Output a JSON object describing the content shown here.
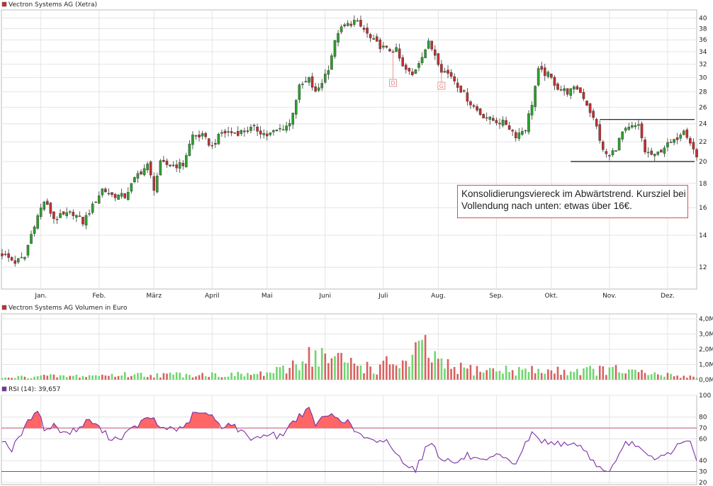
{
  "chart_data": [
    {
      "type": "candlestick",
      "title": "Vectron Systems AG (Xetra)",
      "months": [
        "Jan.",
        "Feb.",
        "März",
        "April",
        "Mai",
        "Juni",
        "Juli",
        "Aug.",
        "Sep.",
        "Okt.",
        "Nov.",
        "Dez."
      ],
      "yticks": [
        12,
        14,
        16,
        18,
        20,
        22,
        24,
        26,
        28,
        30,
        32,
        34,
        36,
        38,
        40
      ],
      "ylim": [
        10.8,
        41.6
      ],
      "log_scale": true,
      "grid": true,
      "up_color": "#2e9e2e",
      "down_color": "#c03030",
      "close_path": [
        [
          0,
          12.8
        ],
        [
          4,
          12.3
        ],
        [
          7,
          12.6
        ],
        [
          10,
          14.8
        ],
        [
          13,
          16.5
        ],
        [
          16,
          15.2
        ],
        [
          22,
          15.6
        ],
        [
          25,
          14.9
        ],
        [
          28,
          16.1
        ],
        [
          31,
          17.5
        ],
        [
          34,
          17.0
        ],
        [
          38,
          16.9
        ],
        [
          42,
          18.8
        ],
        [
          45,
          19.6
        ],
        [
          47,
          17.6
        ],
        [
          49,
          19.8
        ],
        [
          53,
          19.6
        ],
        [
          56,
          19.7
        ],
        [
          59,
          22.7
        ],
        [
          62,
          22.6
        ],
        [
          65,
          21.5
        ],
        [
          68,
          23.0
        ],
        [
          73,
          23.0
        ],
        [
          78,
          23.5
        ],
        [
          82,
          22.7
        ],
        [
          86,
          23.4
        ],
        [
          89,
          24.0
        ],
        [
          92,
          28.6
        ],
        [
          95,
          29.7
        ],
        [
          97,
          27.8
        ],
        [
          99,
          29.4
        ],
        [
          101,
          31.5
        ],
        [
          104,
          37.5
        ],
        [
          107,
          38.7
        ],
        [
          109,
          39.4
        ],
        [
          112,
          37.8
        ],
        [
          114,
          36.2
        ],
        [
          116,
          35.3
        ],
        [
          119,
          34.3
        ],
        [
          122,
          34.2
        ],
        [
          124,
          31.5
        ],
        [
          127,
          30.3
        ],
        [
          130,
          33.5
        ],
        [
          132,
          35.4
        ],
        [
          134,
          33.6
        ],
        [
          136,
          31.2
        ],
        [
          139,
          30.3
        ],
        [
          142,
          28.3
        ],
        [
          145,
          26.5
        ],
        [
          148,
          25.2
        ],
        [
          151,
          24.5
        ],
        [
          154,
          24.2
        ],
        [
          156,
          24.0
        ],
        [
          159,
          22.7
        ],
        [
          162,
          23.5
        ],
        [
          164,
          26.5
        ],
        [
          166,
          31.0
        ],
        [
          169,
          30.4
        ],
        [
          172,
          28.6
        ],
        [
          175,
          28.0
        ],
        [
          178,
          28.5
        ],
        [
          180,
          27.3
        ],
        [
          182,
          25.5
        ],
        [
          184,
          23.6
        ],
        [
          186,
          21.0
        ],
        [
          188,
          20.5
        ],
        [
          190,
          21.4
        ],
        [
          192,
          23.0
        ],
        [
          195,
          23.6
        ],
        [
          197,
          23.7
        ],
        [
          199,
          21.0
        ],
        [
          202,
          20.5
        ],
        [
          205,
          21.5
        ],
        [
          208,
          22.0
        ],
        [
          211,
          23.5
        ],
        [
          213,
          22.0
        ],
        [
          215,
          20.4
        ]
      ],
      "resistance_line": 24.5,
      "support_line": 20,
      "annotation": "Konsolidierungsviereck im Abwärtstrend. Kursziel bei Vollendung nach unten: etwas über 16€.",
      "markers": [
        {
          "label": "D",
          "at": "Juli"
        },
        {
          "label": "G",
          "at": "Juli"
        }
      ]
    },
    {
      "type": "bar",
      "title": "Vectron Systems AG Volumen in Euro",
      "yticks": [
        "0,0M",
        "1,0M",
        "2,0M",
        "3,0M",
        "4,0M"
      ],
      "ylim": [
        0,
        4
      ],
      "peaks": [
        [
          0,
          0.15
        ],
        [
          10,
          0.4
        ],
        [
          20,
          0.35
        ],
        [
          30,
          0.45
        ],
        [
          40,
          0.55
        ],
        [
          50,
          0.5
        ],
        [
          60,
          0.6
        ],
        [
          70,
          0.5
        ],
        [
          80,
          0.6
        ],
        [
          88,
          1.0
        ],
        [
          92,
          2.2
        ],
        [
          96,
          2.7
        ],
        [
          100,
          2.3
        ],
        [
          104,
          2.0
        ],
        [
          108,
          1.8
        ],
        [
          112,
          1.5
        ],
        [
          116,
          1.0
        ],
        [
          120,
          1.8
        ],
        [
          126,
          1.6
        ],
        [
          130,
          3.5
        ],
        [
          136,
          1.5
        ],
        [
          140,
          1.2
        ],
        [
          150,
          1.0
        ],
        [
          160,
          1.0
        ],
        [
          170,
          0.9
        ],
        [
          180,
          1.0
        ],
        [
          190,
          1.0
        ],
        [
          200,
          0.6
        ],
        [
          215,
          0.3
        ]
      ]
    },
    {
      "type": "area",
      "title": "RSI (14): 39,657",
      "yticks": [
        20,
        30,
        40,
        60,
        70,
        80,
        100
      ],
      "ylim": [
        18,
        100
      ],
      "reference_lines": [
        70,
        30
      ],
      "points": [
        [
          0,
          60
        ],
        [
          3,
          50
        ],
        [
          6,
          65
        ],
        [
          9,
          80
        ],
        [
          11,
          88
        ],
        [
          13,
          68
        ],
        [
          16,
          72
        ],
        [
          20,
          65
        ],
        [
          24,
          70
        ],
        [
          27,
          78
        ],
        [
          30,
          70
        ],
        [
          33,
          62
        ],
        [
          36,
          60
        ],
        [
          40,
          68
        ],
        [
          43,
          75
        ],
        [
          46,
          80
        ],
        [
          49,
          70
        ],
        [
          53,
          70
        ],
        [
          56,
          68
        ],
        [
          59,
          82
        ],
        [
          62,
          84
        ],
        [
          65,
          80
        ],
        [
          68,
          72
        ],
        [
          71,
          74
        ],
        [
          74,
          66
        ],
        [
          78,
          60
        ],
        [
          82,
          65
        ],
        [
          86,
          62
        ],
        [
          89,
          72
        ],
        [
          92,
          82
        ],
        [
          95,
          86
        ],
        [
          97,
          74
        ],
        [
          99,
          78
        ],
        [
          101,
          82
        ],
        [
          104,
          80
        ],
        [
          107,
          75
        ],
        [
          110,
          65
        ],
        [
          113,
          60
        ],
        [
          116,
          55
        ],
        [
          119,
          60
        ],
        [
          122,
          45
        ],
        [
          125,
          38
        ],
        [
          128,
          32
        ],
        [
          131,
          50
        ],
        [
          133,
          58
        ],
        [
          135,
          45
        ],
        [
          138,
          40
        ],
        [
          141,
          38
        ],
        [
          144,
          45
        ],
        [
          147,
          40
        ],
        [
          150,
          38
        ],
        [
          153,
          45
        ],
        [
          156,
          40
        ],
        [
          159,
          38
        ],
        [
          162,
          55
        ],
        [
          164,
          65
        ],
        [
          166,
          60
        ],
        [
          169,
          56
        ],
        [
          172,
          58
        ],
        [
          175,
          52
        ],
        [
          178,
          56
        ],
        [
          180,
          50
        ],
        [
          183,
          40
        ],
        [
          186,
          30
        ],
        [
          188,
          32
        ],
        [
          190,
          38
        ],
        [
          193,
          55
        ],
        [
          196,
          56
        ],
        [
          199,
          45
        ],
        [
          202,
          40
        ],
        [
          205,
          45
        ],
        [
          208,
          50
        ],
        [
          211,
          60
        ],
        [
          213,
          55
        ],
        [
          215,
          40
        ]
      ]
    }
  ]
}
